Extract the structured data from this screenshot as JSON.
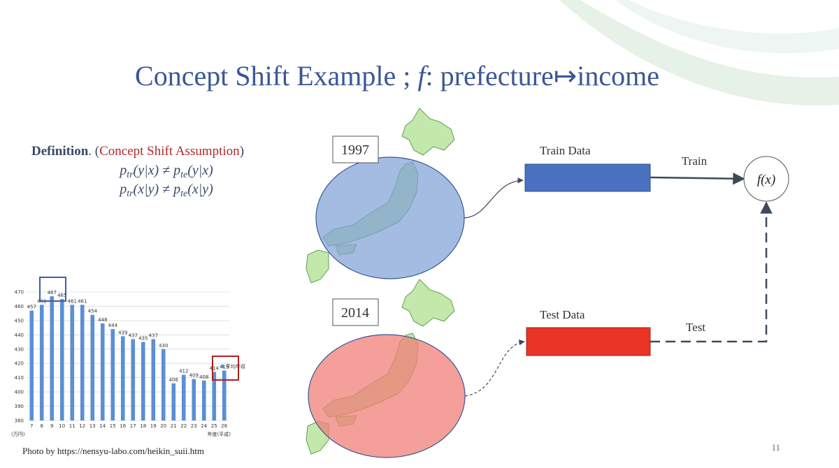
{
  "title": {
    "prefix": "Concept Shift Example ; ",
    "italic": "f",
    "suffix": ": prefecture↦income"
  },
  "definition": {
    "label": "Definition",
    "open": ". (",
    "name": "Concept Shift Assumption",
    "close": ")",
    "formula_1": {
      "p1": "p",
      "s1": "tr",
      "mid": "(y|x) ≠ p",
      "s2": "te",
      "end": "(y|x)"
    },
    "formula_2": {
      "p1": "p",
      "s1": "tr",
      "mid": "(x|y) ≠ p",
      "s2": "te",
      "end": "(x|y)"
    }
  },
  "diagram": {
    "year_1": "1997",
    "year_2": "2014",
    "train_data": "Train Data",
    "test_data": "Test Data",
    "train": "Train",
    "test": "Test",
    "model": "f(x)"
  },
  "credit": "Photo by https://nensyu-labo.com/heikin_suii.htm",
  "page_number": "11",
  "chart_data": {
    "type": "bar",
    "categories": [
      "7",
      "8",
      "9",
      "10",
      "11",
      "12",
      "13",
      "14",
      "15",
      "16",
      "17",
      "18",
      "19",
      "20",
      "21",
      "22",
      "23",
      "24",
      "25",
      "26"
    ],
    "series": [
      {
        "name": "平均年収",
        "color": "#5b8fd6",
        "values": [
          457,
          461,
          467,
          465,
          461,
          461,
          454,
          448,
          444,
          439,
          437,
          435,
          437,
          430,
          406,
          412,
          409,
          408,
          414,
          415
        ]
      }
    ],
    "ylim": [
      380,
      470
    ],
    "yticks": [
      380,
      390,
      400,
      410,
      420,
      430,
      440,
      450,
      460,
      470
    ],
    "y_unit": "(万円)",
    "x_label": "年度(平成)",
    "grid": true
  }
}
